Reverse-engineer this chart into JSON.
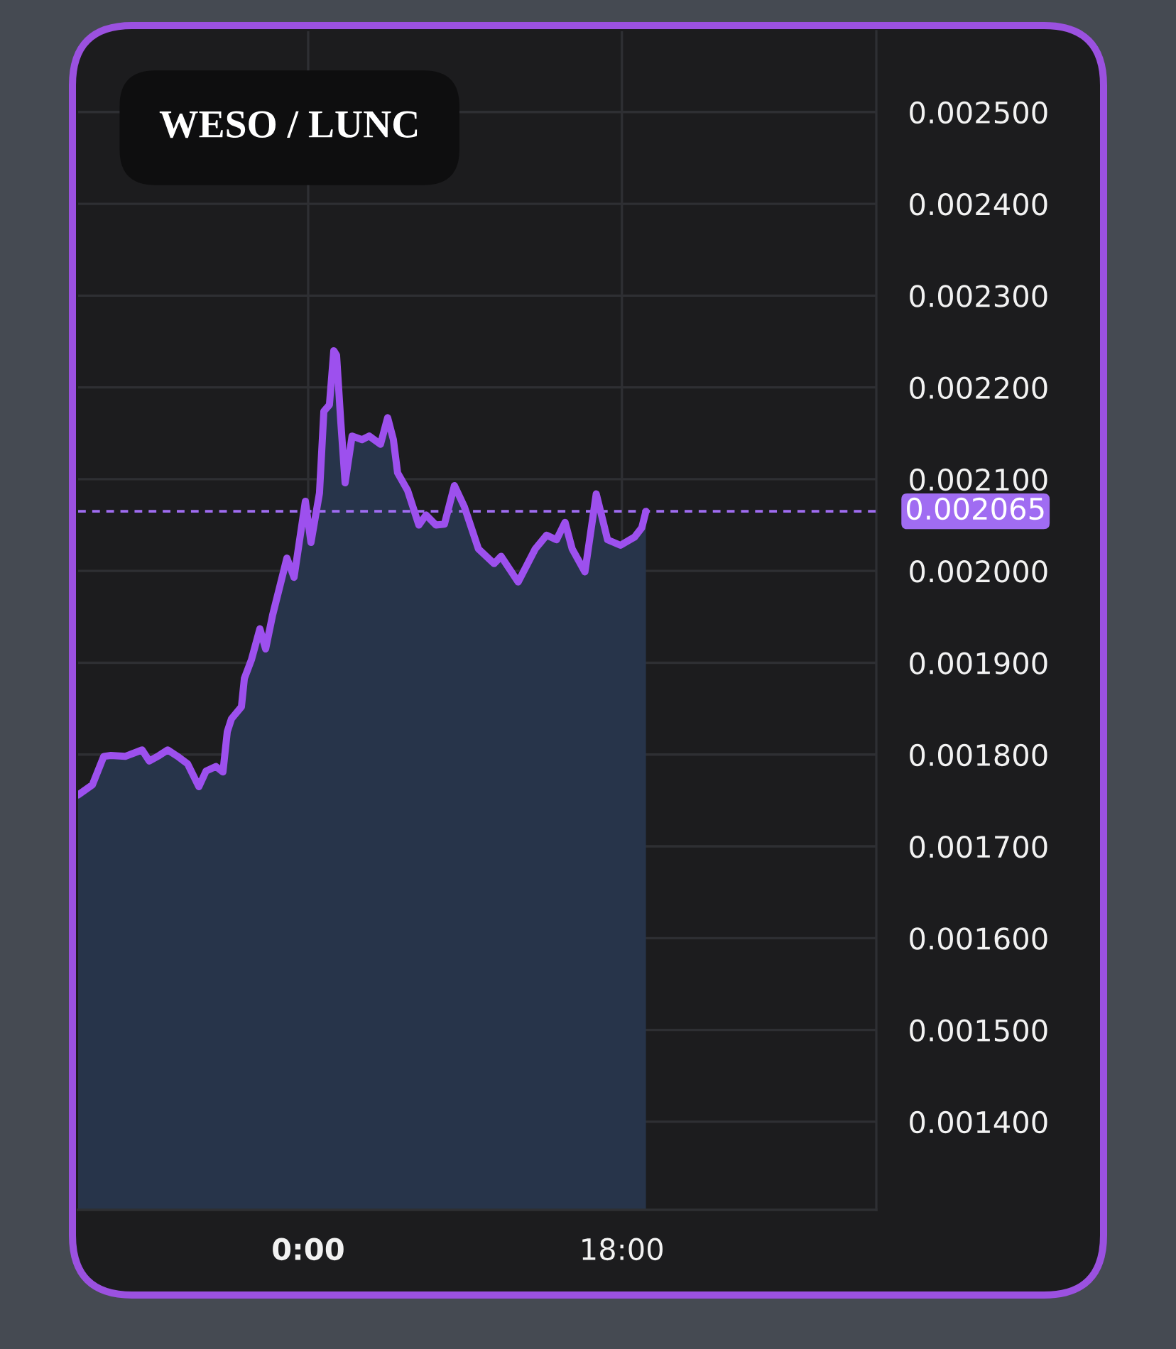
{
  "chart_data": {
    "type": "area",
    "title": "WESO / LUNC",
    "x": [
      -13.2,
      -12.38,
      -11.73,
      -11.32,
      -10.5,
      -9.53,
      -9.12,
      -8.55,
      -8.06,
      -7.49,
      -6.92,
      -6.27,
      -5.86,
      -5.29,
      -4.89,
      -4.64,
      -4.4,
      -3.83,
      -3.66,
      -3.26,
      -2.77,
      -2.44,
      -2.04,
      -1.63,
      -1.22,
      -0.81,
      -0.16,
      0.16,
      0.65,
      0.9,
      1.22,
      1.47,
      1.63,
      1.87,
      2.12,
      2.52,
      3.09,
      3.5,
      4.15,
      4.56,
      4.89,
      5.13,
      5.7,
      6.35,
      6.76,
      7.33,
      7.82,
      8.39,
      8.96,
      9.77,
      10.67,
      11.07,
      12.05,
      13.03,
      13.68,
      14.25,
      14.74,
      15.15,
      15.88,
      16.53,
      17.18,
      17.92,
      18.73,
      19.14,
      19.38
    ],
    "values": [
      0.001756,
      0.001767,
      0.001798,
      0.001799,
      0.001798,
      0.001805,
      0.001793,
      0.001799,
      0.001805,
      0.001798,
      0.00179,
      0.001765,
      0.001782,
      0.001787,
      0.001781,
      0.001825,
      0.001839,
      0.001852,
      0.001883,
      0.001903,
      0.001937,
      0.001915,
      0.001952,
      0.001983,
      0.002014,
      0.001993,
      0.002076,
      0.002031,
      0.002085,
      0.002174,
      0.002181,
      0.00224,
      0.002235,
      0.002163,
      0.002096,
      0.002147,
      0.002143,
      0.002147,
      0.002138,
      0.002167,
      0.002143,
      0.002107,
      0.002088,
      0.00205,
      0.002061,
      0.00205,
      0.002051,
      0.002093,
      0.00207,
      0.002024,
      0.002008,
      0.002016,
      0.001988,
      0.002024,
      0.002039,
      0.002034,
      0.002053,
      0.002024,
      0.001999,
      0.002084,
      0.002034,
      0.002028,
      0.002037,
      0.002047,
      0.002065
    ],
    "color": "#9d50ee",
    "xlim": [
      -13.2,
      32.6
    ],
    "xticks": [
      {
        "value": 0,
        "label": "0:00"
      },
      {
        "value": 18,
        "label": "18:00"
      }
    ],
    "ylim": [
      0.001304,
      0.002588
    ],
    "yticks": [
      {
        "value": 0.0014,
        "label": "0.001400"
      },
      {
        "value": 0.0015,
        "label": "0.001500"
      },
      {
        "value": 0.0016,
        "label": "0.001600"
      },
      {
        "value": 0.0017,
        "label": "0.001700"
      },
      {
        "value": 0.0018,
        "label": "0.001800"
      },
      {
        "value": 0.0019,
        "label": "0.001900"
      },
      {
        "value": 0.002,
        "label": "0.002000"
      },
      {
        "value": 0.0021,
        "label": "0.002100"
      },
      {
        "value": 0.0022,
        "label": "0.002200"
      },
      {
        "value": 0.0023,
        "label": "0.002300"
      },
      {
        "value": 0.0024,
        "label": "0.002400"
      },
      {
        "value": 0.0025,
        "label": "0.002500"
      }
    ],
    "ref_lines": [
      {
        "axis": "y",
        "value": 0.002065,
        "label": "0.002065",
        "color": "#a06cf2",
        "line_style": "dashed"
      }
    ],
    "grid": true
  }
}
